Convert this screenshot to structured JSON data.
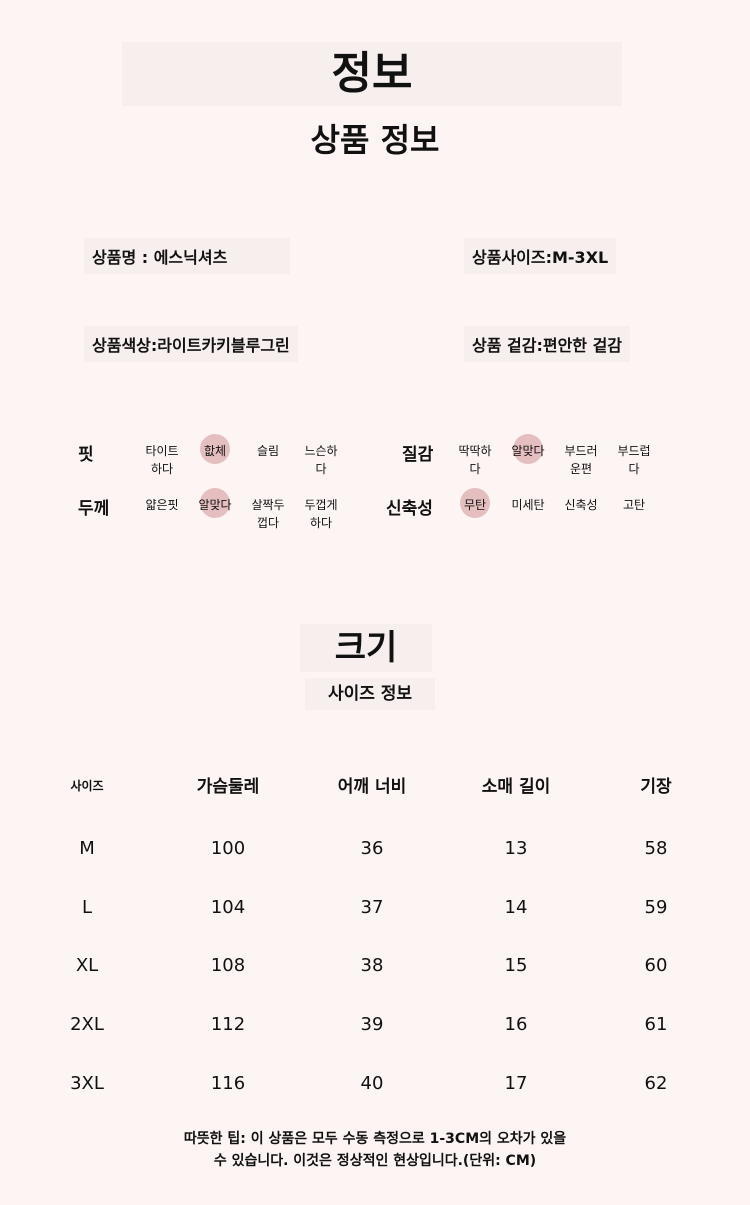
{
  "header": {
    "title": "정보",
    "subtitle": "상품 정보"
  },
  "info": {
    "name": "상품명 : 에스닉셔츠",
    "size": "상품사이즈:M-3XL",
    "color": "상품색상:라이트카키블루그린",
    "texture": "상품 겉감:편안한 겉감"
  },
  "attributes": [
    {
      "label": "핏",
      "options": [
        "타이트하다",
        "핪체",
        "슬림",
        "느슨하다"
      ],
      "selected": 1
    },
    {
      "label": "두께",
      "options": [
        "얇은핏",
        "알맞다",
        "살짝두껍다",
        "두껍게하다"
      ],
      "selected": 1
    },
    {
      "label": "질감",
      "options": [
        "딱딱하다",
        "알맞다",
        "부드러운편",
        "부드럽다"
      ],
      "selected": 1
    },
    {
      "label": "신축성",
      "options": [
        "무탄",
        "미세탄",
        "신축성",
        "고탄"
      ],
      "selected": 0
    }
  ],
  "size_section": {
    "title": "크기",
    "subtitle": "사이즈 정보"
  },
  "size_table": {
    "headers": [
      "사이즈",
      "가슴둘레",
      "어깨 너비",
      "소매 길이",
      "기장"
    ],
    "rows": [
      [
        "M",
        "100",
        "36",
        "13",
        "58"
      ],
      [
        "L",
        "104",
        "37",
        "14",
        "59"
      ],
      [
        "XL",
        "108",
        "38",
        "15",
        "60"
      ],
      [
        "2XL",
        "112",
        "39",
        "16",
        "61"
      ],
      [
        "3XL",
        "116",
        "40",
        "17",
        "62"
      ]
    ]
  },
  "note": {
    "line1": "따뜻한 팁: 이 상품은 모두 수동 측정으로 1-3CM의 오차가  있을",
    "line2": "수 있습니다. 이것은 정상적인 현상입니다.(단위: CM)"
  },
  "colors": {
    "background": "#fdf5f4",
    "selected": "#e5bfbf"
  }
}
